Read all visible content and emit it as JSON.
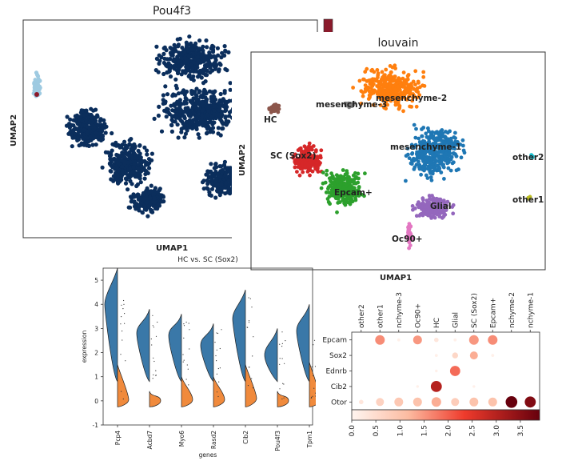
{
  "chart_data": [
    {
      "type": "scatter",
      "title": "Pou4f3",
      "xlabel": "UMAP1",
      "ylabel": "UMAP2",
      "colormap": [
        "#f7fbff",
        "#6baed6",
        "#08306b"
      ],
      "colorbar_color": "#8b1a2b",
      "grid": false,
      "clusters": [
        {
          "name": "small-left",
          "color": "#9ecae1"
        },
        {
          "name": "main-bottom-left",
          "color": "#0b2e5c"
        },
        {
          "name": "main-top-right",
          "color": "#0b2e5c"
        },
        {
          "name": "bottom-right",
          "color": "#0b2e5c"
        }
      ]
    },
    {
      "type": "scatter",
      "title": "louvain",
      "xlabel": "UMAP1",
      "ylabel": "UMAP2",
      "grid": false,
      "clusters": [
        {
          "name": "mesenchyme-2",
          "color": "#ff7f0e"
        },
        {
          "name": "mesenchyme-3",
          "color": "#7f7f7f"
        },
        {
          "name": "HC",
          "color": "#8c564b"
        },
        {
          "name": "mesenchyme-1",
          "color": "#1f77b4"
        },
        {
          "name": "SC (Sox2)",
          "color": "#d62728"
        },
        {
          "name": "Epcam+",
          "color": "#2ca02c"
        },
        {
          "name": "Glial",
          "color": "#9467bd"
        },
        {
          "name": "Oc90+",
          "color": "#e377c2"
        },
        {
          "name": "other2",
          "color": "#17becf"
        },
        {
          "name": "other1",
          "color": "#bcbd22"
        }
      ]
    },
    {
      "type": "violin",
      "title": "HC vs. SC (Sox2)",
      "xlabel": "genes",
      "ylabel": "expression",
      "ylim": [
        -1,
        5.5
      ],
      "yticks": [
        "-1",
        "0",
        "1",
        "2",
        "3",
        "4",
        "5"
      ],
      "categories": [
        "Pcp4",
        "Acbd7",
        "Myo6",
        "Rasd2",
        "Cib2",
        "Pou4f3",
        "Tpm1"
      ],
      "series": [
        {
          "color": "#3a78a8",
          "modes": [
            4.0,
            2.8,
            2.7,
            2.3,
            3.4,
            1.9,
            2.9
          ],
          "max": [
            5.5,
            3.8,
            3.6,
            3.2,
            4.6,
            3.0,
            4.0
          ]
        },
        {
          "color": "#f08a3c",
          "modes": [
            0.05,
            0.0,
            0.05,
            0.05,
            0.1,
            0.0,
            0.05
          ],
          "max": [
            1.5,
            0.4,
            1.0,
            1.0,
            1.5,
            0.4,
            1.6
          ]
        }
      ]
    },
    {
      "type": "dotplot",
      "rows": [
        "Epcam",
        "Sox2",
        "Ednrb",
        "Cib2",
        "Otor"
      ],
      "columns": [
        "other2",
        "other1",
        "nchyme-3",
        "Oc90+",
        "HC",
        "Glial",
        "SC (Sox2)",
        "Epcam+",
        "nchyme-2",
        "nchyme-1"
      ],
      "colorbar_ticks": [
        "0.0",
        "0.5",
        "1.0",
        "1.5",
        "2.0",
        "2.5",
        "3.0",
        "3.5"
      ],
      "colorbar_range": [
        0,
        3.9
      ],
      "values": [
        [
          0.0,
          1.6,
          0.1,
          1.5,
          0.3,
          0.1,
          1.5,
          1.6,
          0.0,
          0.0
        ],
        [
          0.0,
          0.0,
          0.0,
          0.0,
          0.1,
          0.6,
          1.3,
          0.1,
          0.0,
          0.0
        ],
        [
          0.0,
          0.0,
          0.0,
          0.0,
          0.1,
          1.9,
          0.0,
          0.0,
          0.0,
          0.0
        ],
        [
          0.0,
          0.0,
          0.0,
          0.1,
          3.0,
          0.0,
          0.1,
          0.0,
          0.0,
          0.0
        ],
        [
          0.3,
          0.7,
          0.9,
          1.0,
          1.3,
          0.8,
          1.0,
          1.0,
          3.9,
          3.6
        ]
      ],
      "fractions": [
        [
          0.0,
          0.55,
          0.1,
          0.5,
          0.2,
          0.1,
          0.55,
          0.55,
          0.0,
          0.0
        ],
        [
          0.0,
          0.0,
          0.0,
          0.0,
          0.1,
          0.3,
          0.45,
          0.1,
          0.0,
          0.0
        ],
        [
          0.0,
          0.0,
          0.0,
          0.0,
          0.08,
          0.6,
          0.0,
          0.0,
          0.0,
          0.0
        ],
        [
          0.0,
          0.0,
          0.0,
          0.08,
          0.65,
          0.0,
          0.08,
          0.0,
          0.0,
          0.0
        ],
        [
          0.2,
          0.45,
          0.5,
          0.5,
          0.55,
          0.45,
          0.5,
          0.5,
          0.7,
          0.65
        ]
      ]
    }
  ]
}
